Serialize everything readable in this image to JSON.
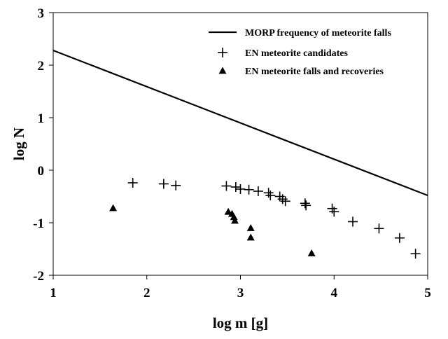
{
  "chart_data": {
    "type": "scatter",
    "xlabel": "log m [g]",
    "ylabel": "log N",
    "xlim": [
      1,
      5
    ],
    "ylim": [
      -2,
      3
    ],
    "xticks": [
      1,
      2,
      3,
      4,
      5
    ],
    "yticks": [
      -2,
      -1,
      0,
      1,
      2,
      3
    ],
    "grid": false,
    "legend_position": "top-right",
    "series": [
      {
        "name": "MORP frequency of meteorite falls",
        "kind": "line",
        "color": "#000000",
        "x": [
          1,
          5
        ],
        "y": [
          2.28,
          -0.48
        ]
      },
      {
        "name": "EN meteorite candidates",
        "kind": "scatter",
        "marker": "plus",
        "color": "#000000",
        "x": [
          1.85,
          2.18,
          2.31,
          2.85,
          2.95,
          3.0,
          3.09,
          3.19,
          3.3,
          3.32,
          3.42,
          3.45,
          3.48,
          3.69,
          3.7,
          3.98,
          4.0,
          4.2,
          4.48,
          4.7,
          4.87
        ],
        "y": [
          -0.24,
          -0.26,
          -0.29,
          -0.3,
          -0.32,
          -0.36,
          -0.37,
          -0.4,
          -0.43,
          -0.48,
          -0.5,
          -0.55,
          -0.59,
          -0.63,
          -0.67,
          -0.73,
          -0.79,
          -0.98,
          -1.11,
          -1.29,
          -1.59
        ]
      },
      {
        "name": "EN meteorite falls and recoveries",
        "kind": "scatter",
        "marker": "triangle",
        "color": "#000000",
        "x": [
          1.64,
          2.87,
          2.91,
          2.93,
          2.94,
          3.11,
          3.11,
          3.76
        ],
        "y": [
          -0.72,
          -0.79,
          -0.83,
          -0.89,
          -0.96,
          -1.1,
          -1.28,
          -1.58
        ]
      }
    ]
  }
}
